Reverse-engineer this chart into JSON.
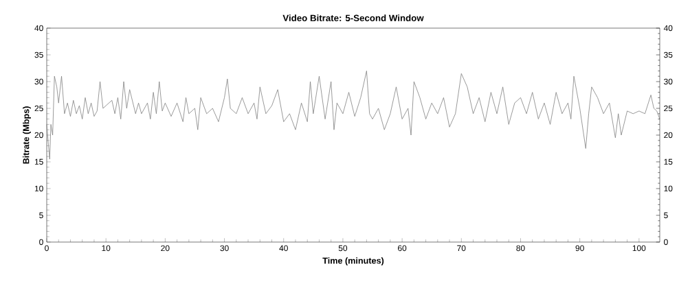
{
  "chart_data": {
    "type": "line",
    "title": "Video Bitrate: 5-Second Window",
    "xlabel": "Time (minutes)",
    "ylabel": "Bitrate (Mbps)",
    "xlim": [
      0,
      103.5
    ],
    "xticks": [
      0,
      10,
      20,
      30,
      40,
      50,
      60,
      70,
      80,
      90,
      100
    ],
    "ylim": [
      0,
      40
    ],
    "yticks": [
      0,
      5,
      10,
      15,
      20,
      25,
      30,
      35,
      40
    ],
    "y2lim": [
      0,
      40
    ],
    "y2ticks": [
      0,
      5,
      10,
      15,
      20,
      25,
      30,
      35,
      40
    ],
    "grid": false,
    "marker": "none",
    "line_style": "solid",
    "series": [
      {
        "color": "#808080",
        "x": [
          0,
          0.3,
          0.5,
          0.7,
          1.0,
          1.3,
          1.7,
          2.0,
          2.5,
          3.0,
          3.5,
          4,
          4.5,
          5,
          5.5,
          6,
          6.5,
          7,
          7.5,
          8,
          8.5,
          9,
          9.5,
          10,
          11,
          11.5,
          12,
          12.5,
          13,
          13.5,
          14,
          15,
          15.5,
          16,
          17,
          17.5,
          18,
          18.5,
          19,
          19.5,
          20,
          21,
          22,
          23,
          23.5,
          24,
          25,
          25.5,
          26,
          27,
          28,
          29,
          30,
          30.5,
          31,
          32,
          33,
          34,
          35,
          35.5,
          36,
          37,
          38,
          39,
          40,
          41,
          42,
          43,
          44,
          44.5,
          45,
          46,
          47,
          48,
          48.5,
          49,
          50,
          51,
          52,
          53,
          54,
          54.5,
          55,
          56,
          57,
          58,
          59,
          60,
          61,
          61.5,
          62,
          63,
          64,
          65,
          66,
          67,
          68,
          69,
          70,
          71,
          72,
          73,
          74,
          75,
          76,
          77,
          78,
          79,
          80,
          81,
          82,
          83,
          84,
          85,
          86,
          87,
          88,
          88.5,
          89,
          90,
          91,
          91.5,
          92,
          93,
          94,
          95,
          96,
          96.5,
          97,
          98,
          99,
          100,
          101,
          102,
          102.5,
          103,
          103.5
        ],
        "values": [
          22,
          18,
          15.5,
          22,
          20,
          31,
          29,
          26,
          31,
          24,
          26,
          23.5,
          26.5,
          24,
          25.5,
          23,
          27,
          24,
          26,
          23.5,
          24.5,
          30,
          25,
          25.5,
          26.5,
          24,
          27,
          23,
          30,
          25,
          28.5,
          24,
          26,
          24,
          26,
          23,
          28,
          24,
          30,
          24.5,
          26,
          23.5,
          26,
          22.5,
          27,
          24,
          25,
          21,
          27,
          24,
          25,
          22.5,
          27,
          30.5,
          25,
          24,
          27,
          24,
          26,
          23,
          29,
          24,
          25.5,
          28.5,
          22.5,
          24,
          21,
          26,
          22.5,
          30,
          24,
          31,
          23,
          30,
          21,
          26,
          24,
          28,
          23.5,
          27,
          32,
          24,
          23,
          25,
          21,
          24,
          29,
          23,
          25,
          20,
          30,
          27,
          23,
          26,
          24,
          27,
          21.5,
          24,
          31.5,
          29,
          24,
          27,
          22.5,
          28,
          24,
          29,
          22,
          26,
          27,
          24,
          28,
          23,
          26,
          22,
          28,
          24,
          26,
          23,
          31,
          25,
          17.5,
          24,
          29,
          27,
          24,
          26,
          19.5,
          24,
          20,
          24.5,
          24,
          24.5,
          24,
          27.5,
          25,
          24.5,
          23
        ]
      }
    ]
  }
}
